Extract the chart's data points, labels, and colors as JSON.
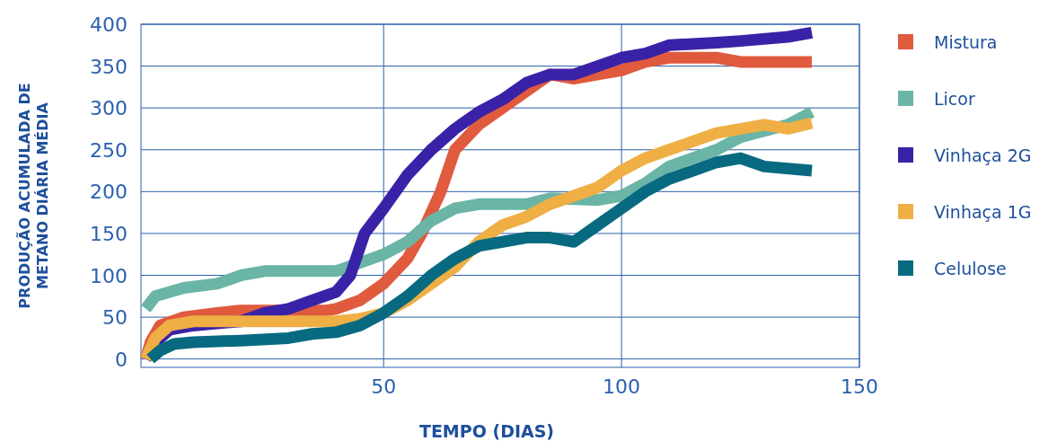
{
  "chart_data": {
    "type": "line",
    "xlabel": "TEMPO (DIAS)",
    "ylabel": "PRODUÇÃO ACUMULADA DE METANO DIÁRIA MÉDIA",
    "xlim": [
      -1,
      150
    ],
    "ylim": [
      -10,
      400
    ],
    "xticks": [
      50,
      100,
      150
    ],
    "yticks": [
      0,
      50,
      100,
      150,
      200,
      250,
      300,
      350,
      400
    ],
    "grid": true,
    "legend": "right",
    "marker": "none",
    "line_style": "solid",
    "series": [
      {
        "name": "Mistura",
        "color": "#e05a3e",
        "x": [
          0,
          1,
          3,
          8,
          15,
          20,
          30,
          38,
          40,
          45,
          50,
          55,
          58,
          62,
          65,
          70,
          75,
          80,
          85,
          90,
          95,
          100,
          105,
          110,
          120,
          125,
          130,
          140
        ],
        "values": [
          0,
          20,
          40,
          50,
          55,
          58,
          58,
          58,
          60,
          70,
          90,
          120,
          150,
          200,
          250,
          280,
          300,
          320,
          340,
          335,
          340,
          345,
          355,
          360,
          360,
          355,
          355,
          355
        ]
      },
      {
        "name": "Licor",
        "color": "#6ab5a6",
        "x": [
          0,
          2,
          8,
          15,
          20,
          25,
          35,
          40,
          45,
          50,
          55,
          60,
          65,
          70,
          80,
          85,
          95,
          100,
          105,
          110,
          120,
          125,
          135,
          140
        ],
        "values": [
          60,
          75,
          85,
          90,
          100,
          105,
          105,
          105,
          115,
          125,
          140,
          165,
          180,
          185,
          185,
          192,
          190,
          195,
          210,
          230,
          250,
          265,
          280,
          295
        ]
      },
      {
        "name": "Vinhaça 2G",
        "color": "#3a22a8",
        "x": [
          0,
          2,
          5,
          10,
          20,
          25,
          30,
          35,
          40,
          43,
          46,
          50,
          55,
          60,
          65,
          70,
          75,
          80,
          85,
          90,
          95,
          100,
          105,
          110,
          120,
          125,
          135,
          140
        ],
        "values": [
          0,
          20,
          35,
          40,
          45,
          55,
          60,
          70,
          80,
          100,
          150,
          180,
          220,
          250,
          275,
          295,
          310,
          330,
          340,
          340,
          350,
          360,
          365,
          375,
          378,
          380,
          385,
          390
        ]
      },
      {
        "name": "Vinhaça 1G",
        "color": "#efaf45",
        "x": [
          0,
          2,
          5,
          10,
          40,
          45,
          50,
          55,
          60,
          65,
          70,
          75,
          80,
          85,
          90,
          95,
          100,
          105,
          110,
          115,
          120,
          130,
          135,
          140
        ],
        "values": [
          0,
          25,
          40,
          45,
          45,
          48,
          55,
          70,
          90,
          110,
          140,
          160,
          170,
          185,
          195,
          205,
          225,
          240,
          250,
          260,
          270,
          280,
          275,
          282
        ]
      },
      {
        "name": "Celulose",
        "color": "#086a80",
        "x": [
          1,
          3,
          6,
          10,
          20,
          30,
          35,
          40,
          45,
          50,
          55,
          60,
          65,
          70,
          75,
          80,
          85,
          90,
          95,
          100,
          105,
          110,
          115,
          120,
          125,
          130,
          140
        ],
        "values": [
          0,
          10,
          18,
          20,
          22,
          25,
          30,
          32,
          40,
          55,
          75,
          100,
          120,
          135,
          140,
          145,
          145,
          140,
          160,
          180,
          200,
          215,
          225,
          235,
          240,
          230,
          225
        ]
      }
    ]
  }
}
